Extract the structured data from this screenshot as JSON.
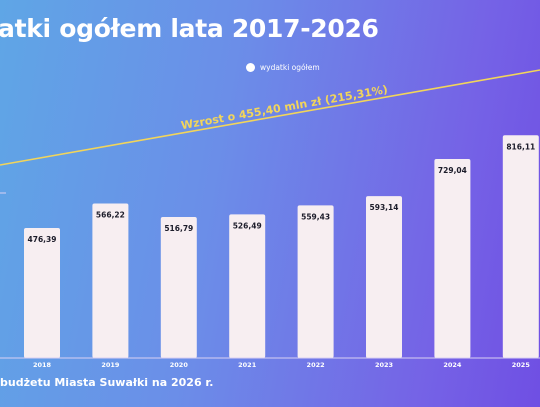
{
  "title": "atki ogółem lata 2017-2026",
  "legend": {
    "label": "wydatki ogółem",
    "color": "#ffffff"
  },
  "footer": "budżetu Miasta Suwałki na 2026 r.",
  "colors": {
    "bar": "#f7eef1",
    "trend_line": "#f2d55a",
    "axis": "#d9d0f3"
  },
  "chart_data": {
    "type": "bar",
    "categories": [
      "2018",
      "2019",
      "2020",
      "2021",
      "2022",
      "2023",
      "2024",
      "2025"
    ],
    "series": [
      {
        "name": "wydatki ogółem",
        "values": [
          476.39,
          566.22,
          516.79,
          526.49,
          559.43,
          593.14,
          729.04,
          816.11
        ]
      }
    ],
    "value_labels": [
      "476,39",
      "566,22",
      "516,79",
      "526,49",
      "559,43",
      "593,14",
      "729,04",
      "816,11"
    ],
    "annotation": "Wzrost o 455,40 mln zł (215,31%)",
    "legend_position": "top-center",
    "grid": false
  }
}
